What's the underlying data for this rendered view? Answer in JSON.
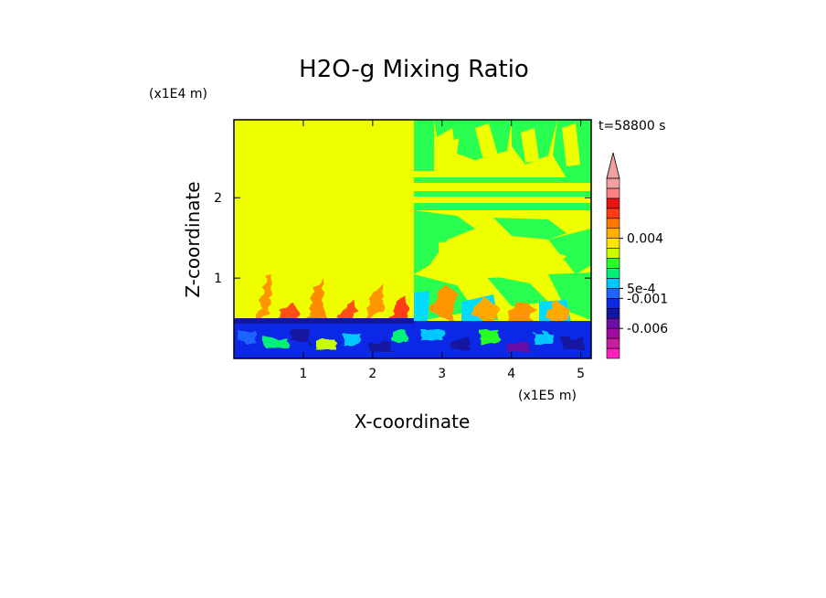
{
  "chart_data": {
    "type": "heatmap",
    "title": "H2O-g Mixing Ratio",
    "xlabel": "X-coordinate",
    "ylabel": "Z-coordinate",
    "x_unit": "(x1E5 m)",
    "y_unit": "(x1E4 m)",
    "time_label": "t=58800 s",
    "xlim": [
      0,
      5.15
    ],
    "ylim": [
      0,
      2.97
    ],
    "x_ticks": [
      "1",
      "2",
      "3",
      "4",
      "5"
    ],
    "y_ticks": [
      "1",
      "2"
    ],
    "colorbar": {
      "extend": "max",
      "colors": [
        "#ff1fbf",
        "#c81ea0",
        "#a00aa0",
        "#6b0fa8",
        "#1414a0",
        "#0a28e6",
        "#1e64ff",
        "#00c8ff",
        "#00f078",
        "#28ff28",
        "#c8ff00",
        "#ffe600",
        "#ffb000",
        "#ff7800",
        "#ff3c14",
        "#e61414",
        "#ff8080",
        "#f0a0a0"
      ],
      "labels": [
        {
          "text": "0.004",
          "level": 0.004
        },
        {
          "text": "5e-4",
          "level": 0.0005
        },
        {
          "text": "-0.001",
          "level": -0.001
        },
        {
          "text": "-0.006",
          "level": -0.006
        }
      ]
    },
    "field_regions": [
      {
        "name": "upper-left",
        "x": [
          0,
          2.55
        ],
        "z": [
          0.55,
          2.97
        ],
        "value": "yellow"
      },
      {
        "name": "upper-right",
        "x": [
          2.55,
          5.15
        ],
        "z": [
          0.6,
          2.97
        ],
        "value": "mixed yellow/green"
      },
      {
        "name": "boundary-layer",
        "x": [
          0,
          5.15
        ],
        "z": [
          0,
          0.55
        ],
        "value": "blue"
      }
    ]
  }
}
